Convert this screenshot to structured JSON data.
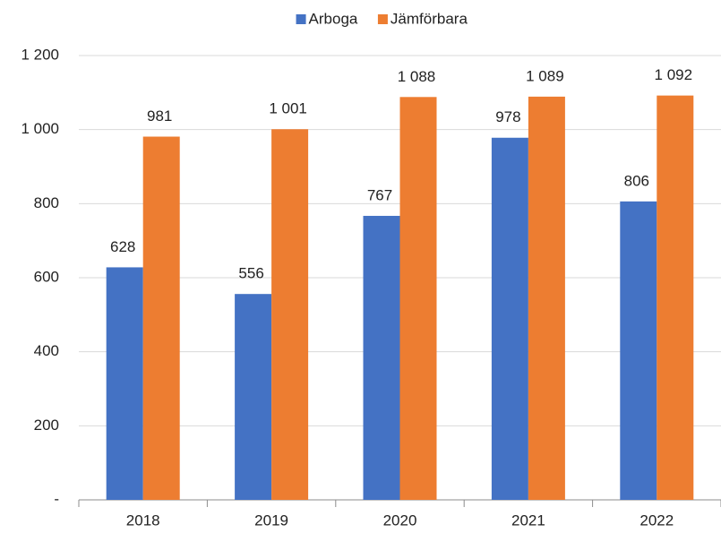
{
  "chart_data": {
    "type": "bar",
    "categories": [
      "2018",
      "2019",
      "2020",
      "2021",
      "2022"
    ],
    "series": [
      {
        "name": "Arboga",
        "color": "#4472c4",
        "values": [
          628,
          556,
          767,
          978,
          806
        ]
      },
      {
        "name": "Jämförbara",
        "color": "#ed7d31",
        "values": [
          981,
          1001,
          1088,
          1089,
          1092
        ],
        "value_labels": [
          "981",
          "1 001",
          "1 088",
          "1 089",
          "1 092"
        ]
      }
    ],
    "ylim": [
      0,
      1200
    ],
    "yticks": [
      {
        "value": 0,
        "label": "-"
      },
      200,
      400,
      600,
      800,
      {
        "value": 1000,
        "label": "1 000"
      },
      {
        "value": 1200,
        "label": "1 200"
      }
    ],
    "grid": true,
    "legend": "top"
  }
}
